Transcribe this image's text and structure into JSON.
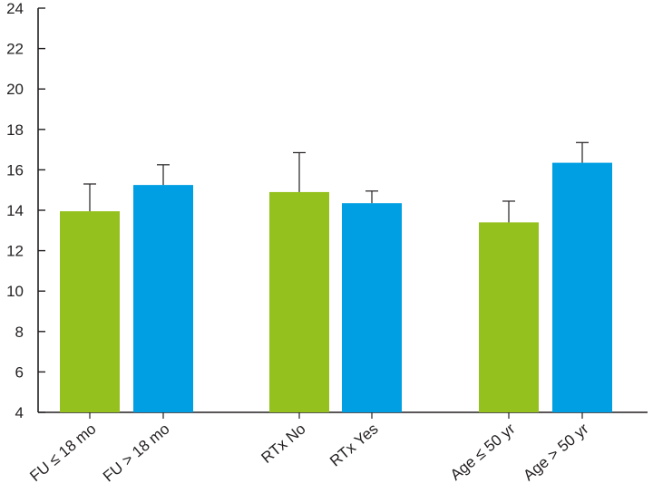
{
  "chart_data": {
    "type": "bar",
    "title": "",
    "xlabel": "",
    "ylabel": "",
    "ylim": [
      4,
      24
    ],
    "y_ticks": [
      4,
      6,
      8,
      10,
      12,
      14,
      16,
      18,
      20,
      22,
      24
    ],
    "grid": false,
    "legend": "none",
    "groups": [
      {
        "bars": [
          {
            "label": "FU ≤ 18 mo",
            "value": 13.95,
            "error": 1.35,
            "color": "#95c11f"
          },
          {
            "label": "FU > 18 mo",
            "value": 15.25,
            "error": 1.0,
            "color": "#009fe3"
          }
        ]
      },
      {
        "bars": [
          {
            "label": "RTx No",
            "value": 14.9,
            "error": 1.95,
            "color": "#95c11f"
          },
          {
            "label": "RTx Yes",
            "value": 14.35,
            "error": 0.6,
            "color": "#009fe3"
          }
        ]
      },
      {
        "bars": [
          {
            "label": "Age ≤ 50 yr",
            "value": 13.4,
            "error": 1.05,
            "color": "#95c11f"
          },
          {
            "label": "Age > 50 yr",
            "value": 16.35,
            "error": 1.0,
            "color": "#009fe3"
          }
        ]
      }
    ]
  }
}
